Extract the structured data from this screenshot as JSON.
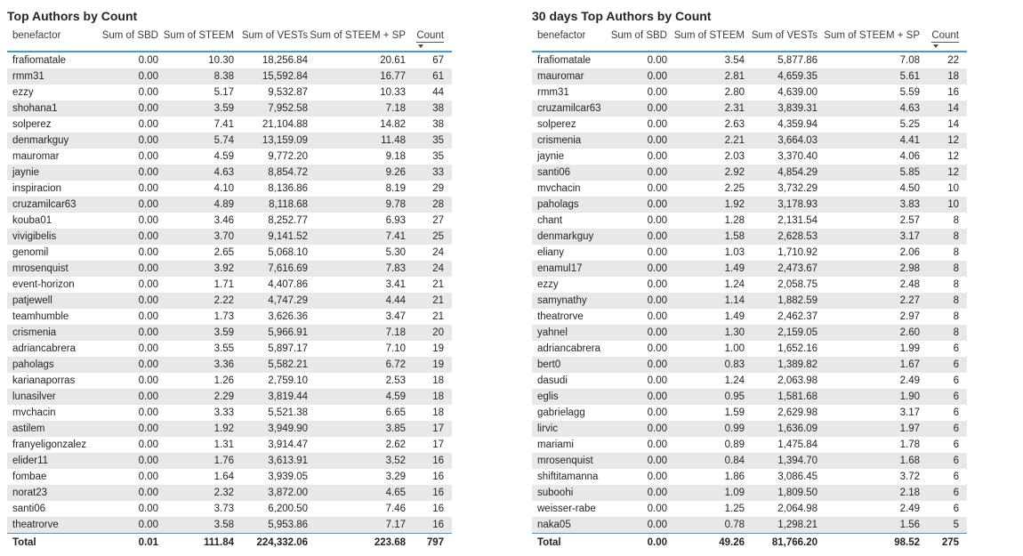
{
  "theme": {
    "accent_line": "#3f9bdc",
    "row_stripe": "#e8e8e8",
    "text": "#252423",
    "header_text": "#3c3c3c",
    "background": "#ffffff"
  },
  "chart_data": [
    {
      "type": "table",
      "title": "Top Authors by Count",
      "columns": [
        "benefactor",
        "Sum of SBD",
        "Sum of STEEM",
        "Sum of VESTs",
        "Sum of STEEM + SP",
        "Count"
      ],
      "sort": {
        "column": "Count",
        "direction": "descending"
      },
      "rows": [
        [
          "frafiomatale",
          "0.00",
          "10.30",
          "18,256.84",
          "20.61",
          "67"
        ],
        [
          "rmm31",
          "0.00",
          "8.38",
          "15,592.84",
          "16.77",
          "61"
        ],
        [
          "ezzy",
          "0.00",
          "5.17",
          "9,532.87",
          "10.33",
          "44"
        ],
        [
          "shohana1",
          "0.00",
          "3.59",
          "7,952.58",
          "7.18",
          "38"
        ],
        [
          "solperez",
          "0.00",
          "7.41",
          "21,104.88",
          "14.82",
          "38"
        ],
        [
          "denmarkguy",
          "0.00",
          "5.74",
          "13,159.09",
          "11.48",
          "35"
        ],
        [
          "mauromar",
          "0.00",
          "4.59",
          "9,772.20",
          "9.18",
          "35"
        ],
        [
          "jaynie",
          "0.00",
          "4.63",
          "8,854.72",
          "9.26",
          "33"
        ],
        [
          "inspiracion",
          "0.00",
          "4.10",
          "8,136.86",
          "8.19",
          "29"
        ],
        [
          "cruzamilcar63",
          "0.00",
          "4.89",
          "8,118.68",
          "9.78",
          "28"
        ],
        [
          "kouba01",
          "0.00",
          "3.46",
          "8,252.77",
          "6.93",
          "27"
        ],
        [
          "vivigibelis",
          "0.00",
          "3.70",
          "9,141.52",
          "7.41",
          "25"
        ],
        [
          "genomil",
          "0.00",
          "2.65",
          "5,068.10",
          "5.30",
          "24"
        ],
        [
          "mrosenquist",
          "0.00",
          "3.92",
          "7,616.69",
          "7.83",
          "24"
        ],
        [
          "event-horizon",
          "0.00",
          "1.71",
          "4,407.86",
          "3.41",
          "21"
        ],
        [
          "patjewell",
          "0.00",
          "2.22",
          "4,747.29",
          "4.44",
          "21"
        ],
        [
          "teamhumble",
          "0.00",
          "1.73",
          "3,626.36",
          "3.47",
          "21"
        ],
        [
          "crismenia",
          "0.00",
          "3.59",
          "5,966.91",
          "7.18",
          "20"
        ],
        [
          "adriancabrera",
          "0.00",
          "3.55",
          "5,897.17",
          "7.10",
          "19"
        ],
        [
          "paholags",
          "0.00",
          "3.36",
          "5,582.21",
          "6.72",
          "19"
        ],
        [
          "karianaporras",
          "0.00",
          "1.26",
          "2,759.10",
          "2.53",
          "18"
        ],
        [
          "lunasilver",
          "0.00",
          "2.29",
          "3,819.44",
          "4.59",
          "18"
        ],
        [
          "mvchacin",
          "0.00",
          "3.33",
          "5,521.38",
          "6.65",
          "18"
        ],
        [
          "astilem",
          "0.00",
          "1.92",
          "3,949.90",
          "3.85",
          "17"
        ],
        [
          "franyeligonzalez",
          "0.00",
          "1.31",
          "3,914.47",
          "2.62",
          "17"
        ],
        [
          "elider11",
          "0.00",
          "1.76",
          "3,613.91",
          "3.52",
          "16"
        ],
        [
          "fombae",
          "0.00",
          "1.64",
          "3,939.05",
          "3.29",
          "16"
        ],
        [
          "norat23",
          "0.00",
          "2.32",
          "3,872.00",
          "4.65",
          "16"
        ],
        [
          "santi06",
          "0.00",
          "3.73",
          "6,200.50",
          "7.46",
          "16"
        ],
        [
          "theatrorve",
          "0.00",
          "3.58",
          "5,953.86",
          "7.17",
          "16"
        ]
      ],
      "total": [
        "Total",
        "0.01",
        "111.84",
        "224,332.06",
        "223.68",
        "797"
      ]
    },
    {
      "type": "table",
      "title": "30 days Top Authors by Count",
      "columns": [
        "benefactor",
        "Sum of SBD",
        "Sum of STEEM",
        "Sum of VESTs",
        "Sum of STEEM + SP",
        "Count"
      ],
      "sort": {
        "column": "Count",
        "direction": "descending"
      },
      "rows": [
        [
          "frafiomatale",
          "0.00",
          "3.54",
          "5,877.86",
          "7.08",
          "22"
        ],
        [
          "mauromar",
          "0.00",
          "2.81",
          "4,659.35",
          "5.61",
          "18"
        ],
        [
          "rmm31",
          "0.00",
          "2.80",
          "4,639.00",
          "5.59",
          "16"
        ],
        [
          "cruzamilcar63",
          "0.00",
          "2.31",
          "3,839.31",
          "4.63",
          "14"
        ],
        [
          "solperez",
          "0.00",
          "2.63",
          "4,359.94",
          "5.25",
          "14"
        ],
        [
          "crismenia",
          "0.00",
          "2.21",
          "3,664.03",
          "4.41",
          "12"
        ],
        [
          "jaynie",
          "0.00",
          "2.03",
          "3,370.40",
          "4.06",
          "12"
        ],
        [
          "santi06",
          "0.00",
          "2.92",
          "4,854.29",
          "5.85",
          "12"
        ],
        [
          "mvchacin",
          "0.00",
          "2.25",
          "3,732.29",
          "4.50",
          "10"
        ],
        [
          "paholags",
          "0.00",
          "1.92",
          "3,178.93",
          "3.83",
          "10"
        ],
        [
          "chant",
          "0.00",
          "1.28",
          "2,131.54",
          "2.57",
          "8"
        ],
        [
          "denmarkguy",
          "0.00",
          "1.58",
          "2,628.53",
          "3.17",
          "8"
        ],
        [
          "eliany",
          "0.00",
          "1.03",
          "1,710.92",
          "2.06",
          "8"
        ],
        [
          "enamul17",
          "0.00",
          "1.49",
          "2,473.67",
          "2.98",
          "8"
        ],
        [
          "ezzy",
          "0.00",
          "1.24",
          "2,058.75",
          "2.48",
          "8"
        ],
        [
          "samynathy",
          "0.00",
          "1.14",
          "1,882.59",
          "2.27",
          "8"
        ],
        [
          "theatrorve",
          "0.00",
          "1.49",
          "2,462.37",
          "2.97",
          "8"
        ],
        [
          "yahnel",
          "0.00",
          "1.30",
          "2,159.05",
          "2.60",
          "8"
        ],
        [
          "adriancabrera",
          "0.00",
          "1.00",
          "1,652.16",
          "1.99",
          "6"
        ],
        [
          "bert0",
          "0.00",
          "0.83",
          "1,389.82",
          "1.67",
          "6"
        ],
        [
          "dasudi",
          "0.00",
          "1.24",
          "2,063.98",
          "2.49",
          "6"
        ],
        [
          "eglis",
          "0.00",
          "0.95",
          "1,581.68",
          "1.90",
          "6"
        ],
        [
          "gabrielagg",
          "0.00",
          "1.59",
          "2,629.98",
          "3.17",
          "6"
        ],
        [
          "lirvic",
          "0.00",
          "0.99",
          "1,636.09",
          "1.97",
          "6"
        ],
        [
          "mariami",
          "0.00",
          "0.89",
          "1,475.84",
          "1.78",
          "6"
        ],
        [
          "mrosenquist",
          "0.00",
          "0.84",
          "1,394.70",
          "1.68",
          "6"
        ],
        [
          "shiftitamanna",
          "0.00",
          "1.86",
          "3,086.45",
          "3.72",
          "6"
        ],
        [
          "suboohi",
          "0.00",
          "1.09",
          "1,809.50",
          "2.18",
          "6"
        ],
        [
          "weisser-rabe",
          "0.00",
          "1.25",
          "2,064.98",
          "2.49",
          "6"
        ],
        [
          "naka05",
          "0.00",
          "0.78",
          "1,298.21",
          "1.56",
          "5"
        ]
      ],
      "total": [
        "Total",
        "0.00",
        "49.26",
        "81,766.20",
        "98.52",
        "275"
      ]
    }
  ]
}
